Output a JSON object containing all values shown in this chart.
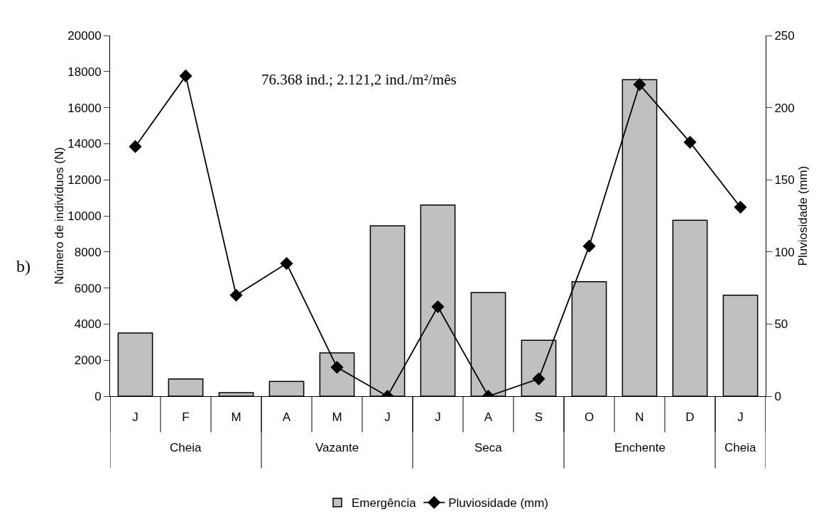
{
  "chart_data": {
    "type": "bar",
    "ylabel": "Número de indivíduos (N)",
    "y2label": "Pluviosidade (mm)",
    "categories": [
      "J",
      "F",
      "M",
      "A",
      "M",
      "J",
      "J",
      "A",
      "S",
      "O",
      "N",
      "D",
      "J"
    ],
    "series": [
      {
        "name": "Emergência",
        "color": "#c0c0c0",
        "values": [
          3500,
          950,
          200,
          820,
          2400,
          9450,
          10600,
          5750,
          3100,
          6350,
          17550,
          9750,
          5600
        ]
      },
      {
        "name": "Pluviosidade (mm)",
        "type": "line",
        "axis": "y2",
        "color": "#000000",
        "marker": "diamond",
        "line_style": "solid",
        "values": [
          173,
          222,
          70,
          92,
          20,
          0,
          62,
          0,
          12,
          104,
          216,
          176,
          131
        ]
      }
    ],
    "ylim": [
      0,
      20000
    ],
    "yticks": [
      0,
      2000,
      4000,
      6000,
      8000,
      10000,
      12000,
      14000,
      16000,
      18000,
      20000
    ],
    "y2lim": [
      0,
      250
    ],
    "y2ticks": [
      0,
      50,
      100,
      150,
      200,
      250
    ],
    "grid": false,
    "legend": "bottom",
    "annotations": [
      "b)",
      "76.368 ind.; 2.121,2 ind./m²/mês",
      "Cheia",
      "Vazante",
      "Seca",
      "Enchente",
      "Cheia"
    ]
  }
}
